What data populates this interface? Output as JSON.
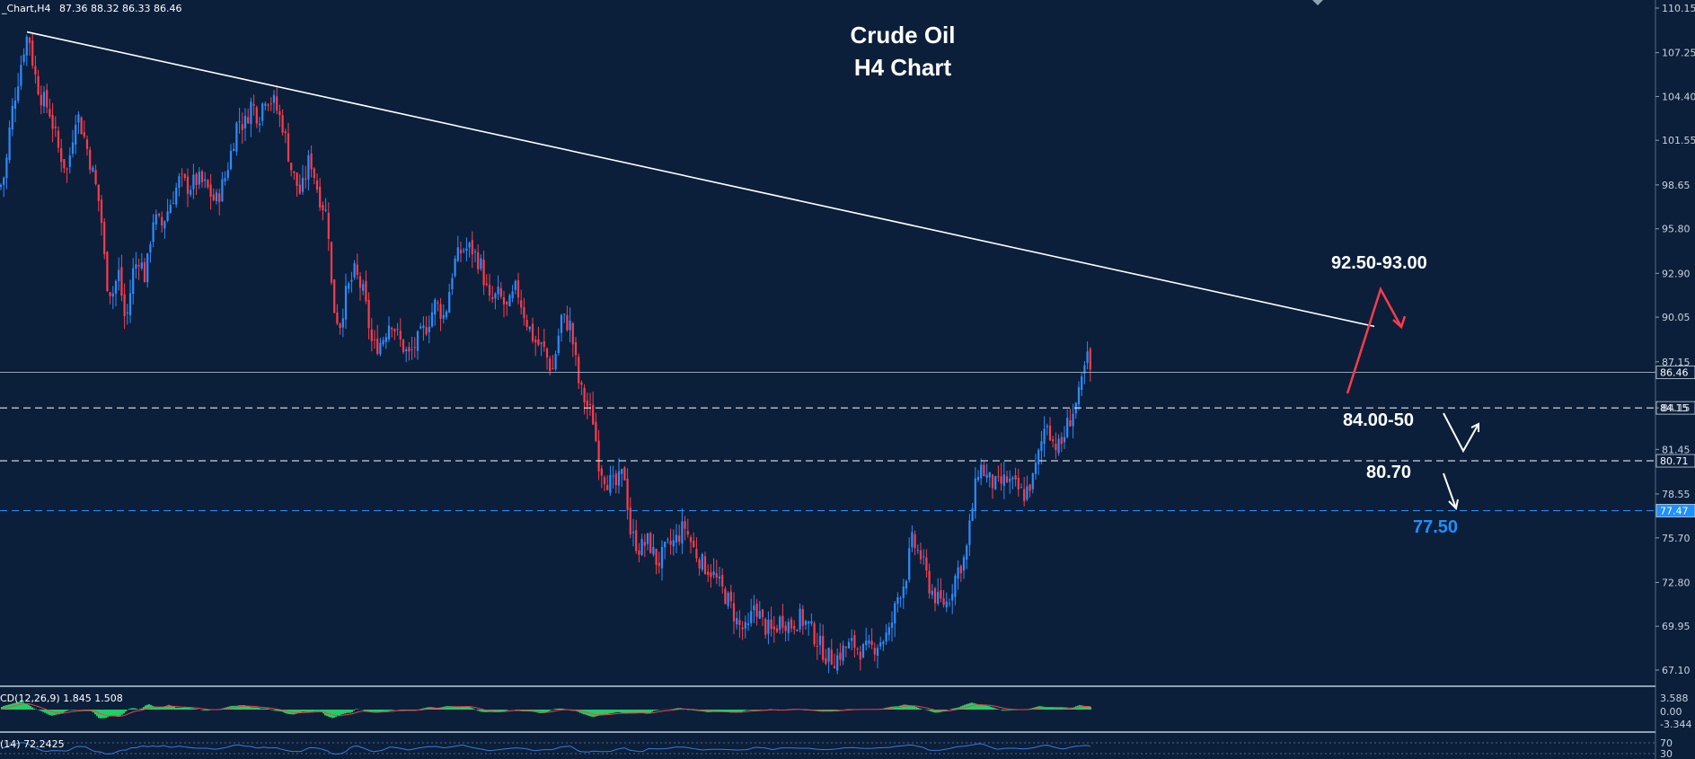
{
  "header": {
    "symbol_info": "_Chart,H4",
    "ohlc": "87.36 88.32 86.33 86.46"
  },
  "colors": {
    "background": "#0b1f3a",
    "bull": "#2e8bff",
    "bear": "#ff3b4a",
    "text": "#ffffff",
    "axis_text": "#c8d2e0",
    "macd_hist": "#22e06b",
    "signal": "#ff3b4a",
    "rsi_line": "#3a7bd5",
    "support_blue": "#1e90ff"
  },
  "chart_data": [
    {
      "type": "candlestick",
      "title": "Crude Oil",
      "subtitle": "H4 Chart",
      "ylim": [
        65.8,
        111.2
      ],
      "y_ticks": [
        "110.15",
        "107.25",
        "104.40",
        "101.55",
        "98.65",
        "95.80",
        "92.90",
        "90.05",
        "87.15",
        "84.15",
        "81.45",
        "78.55",
        "75.70",
        "72.80",
        "69.95",
        "67.10"
      ],
      "y_tick_values": [
        110.15,
        107.25,
        104.4,
        101.55,
        98.65,
        95.8,
        92.9,
        90.05,
        87.15,
        84.15,
        81.45,
        78.55,
        75.7,
        72.8,
        69.95,
        67.1
      ],
      "current_price": {
        "label": "86.46",
        "value": 86.46
      },
      "price_path": [
        [
          0,
          98.5
        ],
        [
          6,
          99.5
        ],
        [
          12,
          103.0
        ],
        [
          20,
          105.5
        ],
        [
          28,
          108.0
        ],
        [
          32,
          108.5
        ],
        [
          38,
          106.0
        ],
        [
          45,
          104.5
        ],
        [
          55,
          103.5
        ],
        [
          65,
          101.0
        ],
        [
          75,
          99.5
        ],
        [
          85,
          103.5
        ],
        [
          95,
          101.5
        ],
        [
          105,
          99.0
        ],
        [
          112,
          97.0
        ],
        [
          118,
          92.5
        ],
        [
          125,
          91.5
        ],
        [
          132,
          93.0
        ],
        [
          140,
          89.5
        ],
        [
          148,
          93.0
        ],
        [
          155,
          94.0
        ],
        [
          162,
          92.5
        ],
        [
          170,
          96.5
        ],
        [
          180,
          96.0
        ],
        [
          190,
          97.5
        ],
        [
          200,
          99.0
        ],
        [
          210,
          98.5
        ],
        [
          220,
          99.0
        ],
        [
          230,
          98.5
        ],
        [
          240,
          97.5
        ],
        [
          250,
          99.0
        ],
        [
          258,
          101.0
        ],
        [
          265,
          103.0
        ],
        [
          272,
          102.5
        ],
        [
          280,
          104.0
        ],
        [
          288,
          103.0
        ],
        [
          295,
          104.5
        ],
        [
          305,
          104.0
        ],
        [
          315,
          102.5
        ],
        [
          325,
          99.5
        ],
        [
          335,
          98.0
        ],
        [
          345,
          100.5
        ],
        [
          355,
          98.0
        ],
        [
          365,
          96.5
        ],
        [
          370,
          91.0
        ],
        [
          378,
          89.5
        ],
        [
          385,
          91.5
        ],
        [
          395,
          93.0
        ],
        [
          405,
          91.5
        ],
        [
          415,
          88.0
        ],
        [
          425,
          88.5
        ],
        [
          435,
          90.0
        ],
        [
          445,
          88.5
        ],
        [
          455,
          87.5
        ],
        [
          465,
          88.5
        ],
        [
          475,
          89.5
        ],
        [
          485,
          91.0
        ],
        [
          495,
          90.0
        ],
        [
          505,
          93.5
        ],
        [
          515,
          94.5
        ],
        [
          525,
          94.5
        ],
        [
          535,
          93.5
        ],
        [
          545,
          91.0
        ],
        [
          555,
          91.5
        ],
        [
          565,
          90.5
        ],
        [
          575,
          92.0
        ],
        [
          585,
          90.0
        ],
        [
          595,
          88.5
        ],
        [
          605,
          88.0
        ],
        [
          615,
          86.5
        ],
        [
          625,
          90.0
        ],
        [
          635,
          89.5
        ],
        [
          645,
          85.5
        ],
        [
          652,
          84.5
        ],
        [
          660,
          83.5
        ],
        [
          667,
          80.5
        ],
        [
          675,
          79.5
        ],
        [
          685,
          79.0
        ],
        [
          695,
          80.0
        ],
        [
          702,
          76.0
        ],
        [
          712,
          75.0
        ],
        [
          722,
          75.5
        ],
        [
          732,
          74.0
        ],
        [
          742,
          75.0
        ],
        [
          752,
          75.5
        ],
        [
          762,
          76.5
        ],
        [
          772,
          75.0
        ],
        [
          782,
          74.0
        ],
        [
          792,
          73.5
        ],
        [
          802,
          72.5
        ],
        [
          812,
          71.5
        ],
        [
          822,
          70.0
        ],
        [
          832,
          69.5
        ],
        [
          840,
          71.5
        ],
        [
          850,
          70.0
        ],
        [
          860,
          69.5
        ],
        [
          870,
          70.5
        ],
        [
          880,
          70.0
        ],
        [
          890,
          70.5
        ],
        [
          900,
          70.0
        ],
        [
          910,
          69.0
        ],
        [
          920,
          68.0
        ],
        [
          930,
          67.8
        ],
        [
          940,
          68.5
        ],
        [
          950,
          68.8
        ],
        [
          960,
          68.3
        ],
        [
          970,
          68.5
        ],
        [
          980,
          69.0
        ],
        [
          990,
          69.5
        ],
        [
          1000,
          72.0
        ],
        [
          1008,
          73.0
        ],
        [
          1015,
          75.5
        ],
        [
          1025,
          74.5
        ],
        [
          1035,
          72.5
        ],
        [
          1045,
          71.5
        ],
        [
          1055,
          71.5
        ],
        [
          1065,
          73.5
        ],
        [
          1075,
          74.5
        ],
        [
          1082,
          77.5
        ],
        [
          1090,
          80.5
        ],
        [
          1100,
          79.5
        ],
        [
          1110,
          79.0
        ],
        [
          1120,
          79.5
        ],
        [
          1130,
          79.0
        ],
        [
          1140,
          78.5
        ],
        [
          1150,
          79.5
        ],
        [
          1158,
          81.5
        ],
        [
          1165,
          83.5
        ],
        [
          1172,
          82.0
        ],
        [
          1180,
          81.5
        ],
        [
          1188,
          83.0
        ],
        [
          1195,
          84.0
        ],
        [
          1202,
          85.0
        ],
        [
          1210,
          87.5
        ],
        [
          1214,
          86.46
        ]
      ],
      "trendline": {
        "from": [
          30,
          108.6
        ],
        "to": [
          1530,
          89.45
        ]
      },
      "levels": [
        {
          "label": "84.15",
          "value": 84.15,
          "style": "dashed",
          "color": "#ffffff"
        },
        {
          "label": "80.71",
          "value": 80.71,
          "style": "dashed",
          "color": "#ffffff"
        },
        {
          "label": "77.47",
          "value": 77.47,
          "style": "dashed",
          "color": "#1e90ff"
        }
      ],
      "annotations": [
        {
          "text": "92.50-93.00",
          "color": "#ffffff"
        },
        {
          "text": "84.00-50",
          "color": "#ffffff"
        },
        {
          "text": "80.70",
          "color": "#ffffff"
        },
        {
          "text": "77.50",
          "color": "#1e90ff"
        }
      ]
    },
    {
      "type": "bar",
      "indicator": "MACD",
      "label": "CD(12,26,9) 1.845 1.508",
      "y_ticks": [
        "3.588",
        "0.00",
        "-3.344"
      ],
      "ylim": [
        -3.344,
        3.588
      ]
    },
    {
      "type": "line",
      "indicator": "RSI",
      "label": "(14) 72.2425",
      "y_ticks": [
        "70",
        "30"
      ],
      "ylim": [
        0,
        100
      ]
    }
  ]
}
